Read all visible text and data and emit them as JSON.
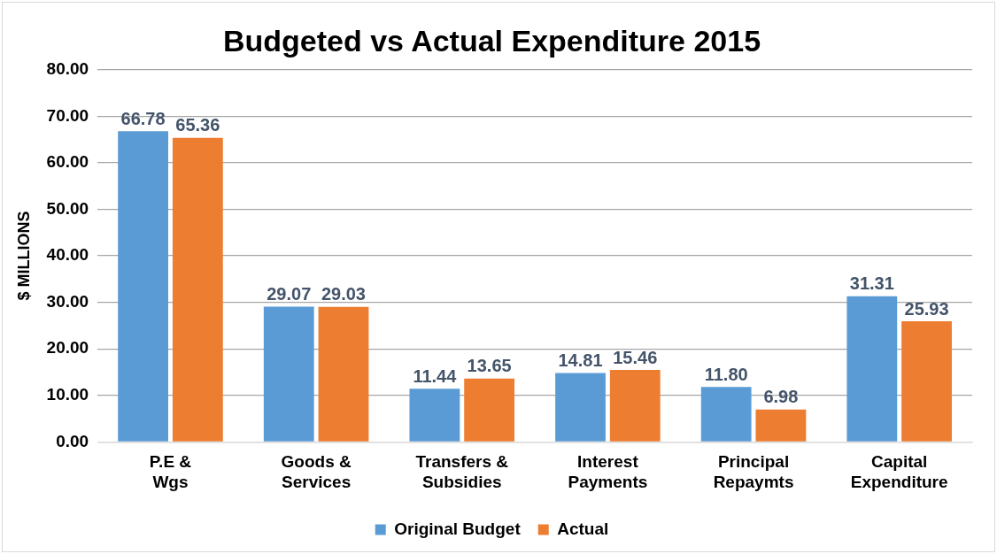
{
  "chart_data": {
    "type": "bar",
    "title": "Budgeted vs Actual Expenditure 2015",
    "ylabel": "$ MILLIONS",
    "categories": [
      "P.E & Wgs",
      "Goods & Services",
      "Transfers & Subsidies",
      "Interest Payments",
      "Principal Repaymts",
      "Capital Expenditure"
    ],
    "series": [
      {
        "name": "Original Budget",
        "color": "#5b9bd5",
        "values": [
          66.78,
          29.07,
          11.44,
          14.81,
          11.8,
          31.31
        ],
        "value_labels": [
          "66.78",
          "29.07",
          "11.44",
          "14.81",
          "11.80",
          "31.31"
        ]
      },
      {
        "name": "Actual",
        "color": "#ed7d31",
        "values": [
          65.36,
          29.03,
          13.65,
          15.46,
          6.98,
          25.93
        ],
        "value_labels": [
          "65.36",
          "29.03",
          "13.65",
          "15.46",
          "6.98",
          "25.93"
        ]
      }
    ],
    "ylim": [
      0,
      80
    ],
    "yticks": [
      {
        "value": 0,
        "label": "0.00"
      },
      {
        "value": 10,
        "label": "10.00"
      },
      {
        "value": 20,
        "label": "20.00"
      },
      {
        "value": 30,
        "label": "30.00"
      },
      {
        "value": 40,
        "label": "40.00"
      },
      {
        "value": 50,
        "label": "50.00"
      },
      {
        "value": 60,
        "label": "60.00"
      },
      {
        "value": 70,
        "label": "70.00"
      },
      {
        "value": 80,
        "label": "80.00"
      }
    ],
    "grid": "y",
    "legend": "bottom"
  }
}
